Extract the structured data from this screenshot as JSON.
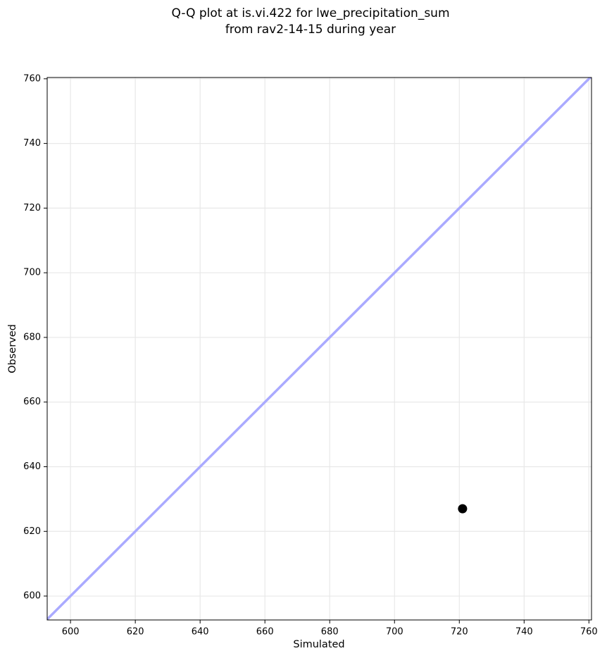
{
  "chart_data": {
    "type": "scatter",
    "title": [
      "Q-Q plot at is.vi.422 for lwe_precipitation_sum",
      "from rav2-14-15 during year"
    ],
    "xlabel": "Simulated",
    "ylabel": "Observed",
    "series": [
      {
        "x": [
          721
        ],
        "values": [
          627
        ],
        "color": "#000000"
      }
    ],
    "reference_line": {
      "color": "#aaaaff"
    },
    "xlim": [
      592.8,
      760.8
    ],
    "ylim": [
      592.6,
      760.4
    ],
    "xticks": [
      600,
      620,
      640,
      660,
      680,
      700,
      720,
      740,
      760
    ],
    "yticks": [
      600,
      620,
      640,
      660,
      680,
      700,
      720,
      740,
      760
    ],
    "grid": true
  }
}
